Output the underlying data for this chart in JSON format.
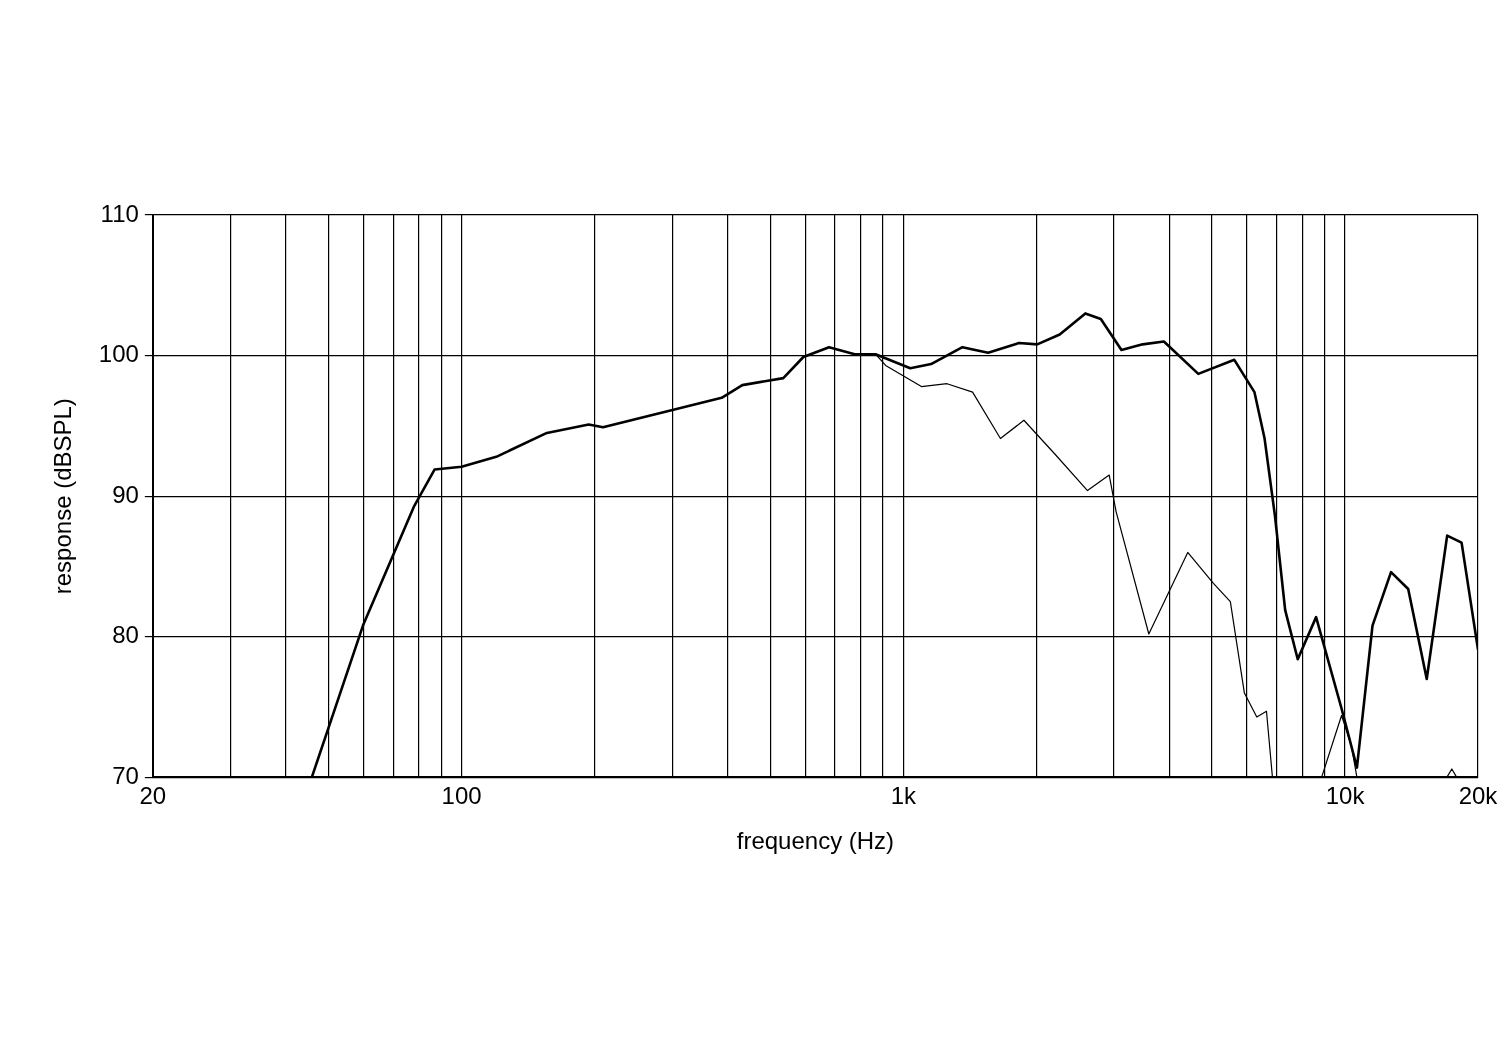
{
  "chart_data": {
    "type": "line",
    "xlabel": "frequency (Hz)",
    "ylabel": "response (dBSPL)",
    "log": "x",
    "grid": true,
    "marker": "none",
    "line_style": "solid",
    "xlim": [
      20,
      20000
    ],
    "ylim": [
      70,
      110
    ],
    "xticks": [
      20,
      {
        "value": 30,
        "label": null
      },
      {
        "value": 40,
        "label": null
      },
      {
        "value": 50,
        "label": null
      },
      {
        "value": 60,
        "label": null
      },
      {
        "value": 70,
        "label": null
      },
      {
        "value": 80,
        "label": null
      },
      {
        "value": 90,
        "label": null
      },
      100,
      {
        "value": 200,
        "label": null
      },
      {
        "value": 300,
        "label": null
      },
      {
        "value": 400,
        "label": null
      },
      {
        "value": 500,
        "label": null
      },
      {
        "value": 600,
        "label": null
      },
      {
        "value": 700,
        "label": null
      },
      {
        "value": 800,
        "label": null
      },
      {
        "value": 900,
        "label": null
      },
      {
        "value": 1000,
        "label": "1k"
      },
      {
        "value": 2000,
        "label": null
      },
      {
        "value": 3000,
        "label": null
      },
      {
        "value": 4000,
        "label": null
      },
      {
        "value": 5000,
        "label": null
      },
      {
        "value": 6000,
        "label": null
      },
      {
        "value": 7000,
        "label": null
      },
      {
        "value": 8000,
        "label": null
      },
      {
        "value": 9000,
        "label": null
      },
      {
        "value": 10000,
        "label": "10k"
      },
      {
        "value": 20000,
        "label": "20k"
      }
    ],
    "yticks": [
      70,
      80,
      90,
      100,
      110
    ],
    "series": [
      {
        "color": "#000000",
        "x": [
          45.8,
          59.8,
          78.1,
          86.9,
          100,
          119.8,
          156,
          194,
          209,
          297,
          388,
          432,
          535,
          594,
          679,
          776,
          865,
          1037,
          1156,
          1361,
          1556,
          1828,
          2010,
          2260,
          2583,
          2800,
          3118,
          3482,
          3890,
          4654,
          5615,
          6237,
          6575,
          6940,
          7320,
          7815,
          8600,
          9820,
          10640,
          11540,
          12710,
          13900,
          15310,
          17030,
          18360,
          20000
        ],
        "values": [
          70,
          80.8,
          89.3,
          91.9,
          92.1,
          92.8,
          94.5,
          95.1,
          94.9,
          96.1,
          97.0,
          97.9,
          98.4,
          99.9,
          100.6,
          100.1,
          100.1,
          99.1,
          99.4,
          100.6,
          100.2,
          100.9,
          100.8,
          101.5,
          103.0,
          102.6,
          100.4,
          100.8,
          101.0,
          98.7,
          99.7,
          97.4,
          94.1,
          88.6,
          81.9,
          78.4,
          81.4,
          74.9,
          70.7,
          80.8,
          84.6,
          83.4,
          77.0,
          87.2,
          86.7,
          79.1
        ]
      },
      {
        "color": "#000000",
        "x": [
          865,
          912,
          1099,
          1256,
          1435,
          1659,
          1875,
          2203,
          2612,
          2925,
          3032,
          3596,
          4405,
          5036,
          5500,
          5918,
          6313,
          6640,
          6850,
          7500,
          8850,
          9820,
          10330,
          10640,
          14000,
          17000,
          17450,
          17900
        ],
        "values": [
          100.1,
          99.3,
          97.8,
          98.0,
          97.4,
          94.1,
          95.4,
          93.0,
          90.4,
          91.5,
          88.9,
          80.2,
          86.0,
          83.8,
          82.5,
          76.0,
          74.3,
          74.7,
          70,
          null,
          70,
          74.4,
          72.3,
          70,
          null,
          70,
          70.6,
          70
        ]
      }
    ]
  }
}
